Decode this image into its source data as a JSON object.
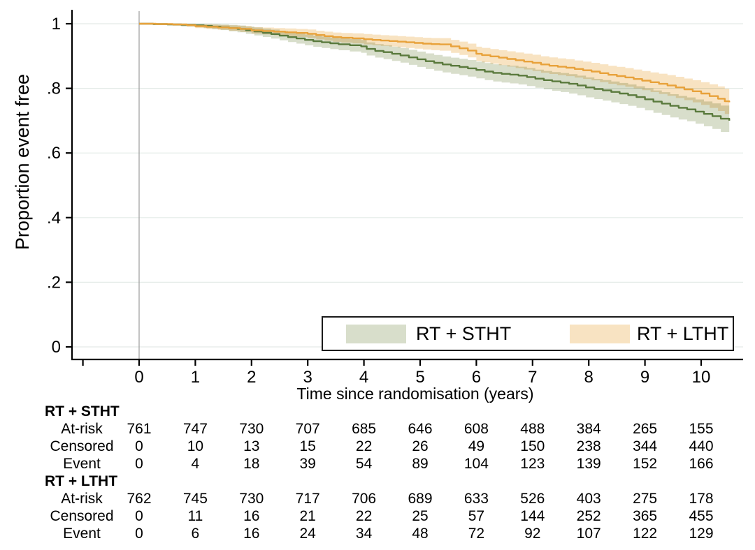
{
  "chart_data": {
    "type": "line",
    "subtype": "kaplan-meier-step",
    "title": "",
    "xlabel": "Time since randomisation (years)",
    "ylabel": "Proportion event free",
    "xlim": [
      -1.2,
      10.75
    ],
    "ylim": [
      0,
      1.04
    ],
    "grid": true,
    "grid_color": "#e4ebe7",
    "zero_line_color": "#9b9b9b",
    "axis_color": "#000000",
    "x_ticks": {
      "values": [
        -1,
        0,
        1,
        2,
        3,
        4,
        5,
        6,
        7,
        8,
        9,
        10
      ],
      "labels": [
        "",
        "0",
        "1",
        "2",
        "3",
        "4",
        "5",
        "6",
        "7",
        "8",
        "9",
        "10"
      ]
    },
    "y_ticks": {
      "values": [
        0,
        0.2,
        0.4,
        0.6,
        0.8,
        1
      ],
      "labels": [
        "0",
        ".2",
        ".4",
        ".6",
        ".8",
        "1"
      ]
    },
    "legend_position": "bottom-right-inside",
    "series": [
      {
        "name": "RT + STHT",
        "line_color": "#5a7a3d",
        "band_color": "#d8decb",
        "points": [
          [
            0,
            1.0
          ],
          [
            0.25,
            0.999
          ],
          [
            0.5,
            0.998
          ],
          [
            0.75,
            0.9966
          ],
          [
            1.0,
            0.995
          ],
          [
            1.15,
            0.993
          ],
          [
            1.3,
            0.991
          ],
          [
            1.45,
            0.989
          ],
          [
            1.6,
            0.9865
          ],
          [
            1.75,
            0.984
          ],
          [
            1.9,
            0.98
          ],
          [
            2.05,
            0.976
          ],
          [
            2.2,
            0.972
          ],
          [
            2.35,
            0.968
          ],
          [
            2.5,
            0.963
          ],
          [
            2.65,
            0.9585
          ],
          [
            2.8,
            0.9545
          ],
          [
            2.95,
            0.95
          ],
          [
            3.1,
            0.946
          ],
          [
            3.25,
            0.9425
          ],
          [
            3.4,
            0.9395
          ],
          [
            3.55,
            0.9365
          ],
          [
            3.75,
            0.9335
          ],
          [
            3.95,
            0.93
          ],
          [
            4.05,
            0.922
          ],
          [
            4.2,
            0.916
          ],
          [
            4.35,
            0.912
          ],
          [
            4.5,
            0.907
          ],
          [
            4.65,
            0.902
          ],
          [
            4.8,
            0.896
          ],
          [
            4.95,
            0.89
          ],
          [
            5.1,
            0.884
          ],
          [
            5.25,
            0.879
          ],
          [
            5.4,
            0.874
          ],
          [
            5.55,
            0.87
          ],
          [
            5.7,
            0.866
          ],
          [
            5.85,
            0.862
          ],
          [
            6.0,
            0.857
          ],
          [
            6.15,
            0.852
          ],
          [
            6.3,
            0.848
          ],
          [
            6.45,
            0.845
          ],
          [
            6.6,
            0.8425
          ],
          [
            6.75,
            0.8395
          ],
          [
            6.9,
            0.835
          ],
          [
            7.05,
            0.83
          ],
          [
            7.2,
            0.8255
          ],
          [
            7.35,
            0.8215
          ],
          [
            7.5,
            0.818
          ],
          [
            7.65,
            0.814
          ],
          [
            7.8,
            0.809
          ],
          [
            7.95,
            0.803
          ],
          [
            8.1,
            0.798
          ],
          [
            8.25,
            0.794
          ],
          [
            8.4,
            0.789
          ],
          [
            8.55,
            0.784
          ],
          [
            8.7,
            0.779
          ],
          [
            8.85,
            0.773
          ],
          [
            9.0,
            0.766
          ],
          [
            9.15,
            0.759
          ],
          [
            9.3,
            0.753
          ],
          [
            9.45,
            0.746
          ],
          [
            9.6,
            0.74
          ],
          [
            9.75,
            0.735
          ],
          [
            9.9,
            0.728
          ],
          [
            10.05,
            0.721
          ],
          [
            10.2,
            0.714
          ],
          [
            10.35,
            0.706
          ],
          [
            10.5,
            0.7
          ]
        ],
        "ci_halfwidth": [
          [
            0,
            0.002
          ],
          [
            0.5,
            0.004
          ],
          [
            1,
            0.006
          ],
          [
            2,
            0.012
          ],
          [
            3,
            0.017
          ],
          [
            4,
            0.02
          ],
          [
            5,
            0.024
          ],
          [
            6,
            0.026
          ],
          [
            7,
            0.028
          ],
          [
            8,
            0.031
          ],
          [
            9,
            0.034
          ],
          [
            10,
            0.038
          ],
          [
            10.5,
            0.042
          ]
        ]
      },
      {
        "name": "RT + LTHT",
        "line_color": "#e8a23b",
        "band_color": "#f8e3c2",
        "points": [
          [
            0,
            1.0
          ],
          [
            0.3,
            0.999
          ],
          [
            0.6,
            0.9978
          ],
          [
            0.85,
            0.996
          ],
          [
            1.0,
            0.9925
          ],
          [
            1.2,
            0.9905
          ],
          [
            1.4,
            0.9885
          ],
          [
            1.6,
            0.9865
          ],
          [
            1.8,
            0.984
          ],
          [
            2.0,
            0.9795
          ],
          [
            2.2,
            0.9775
          ],
          [
            2.4,
            0.9755
          ],
          [
            2.6,
            0.9735
          ],
          [
            2.8,
            0.9715
          ],
          [
            3.0,
            0.969
          ],
          [
            3.15,
            0.965
          ],
          [
            3.3,
            0.9615
          ],
          [
            3.45,
            0.9585
          ],
          [
            3.6,
            0.9565
          ],
          [
            3.8,
            0.9548
          ],
          [
            4.0,
            0.952
          ],
          [
            4.15,
            0.95
          ],
          [
            4.3,
            0.948
          ],
          [
            4.45,
            0.9465
          ],
          [
            4.6,
            0.9445
          ],
          [
            4.75,
            0.9425
          ],
          [
            4.9,
            0.9405
          ],
          [
            5.05,
            0.9385
          ],
          [
            5.2,
            0.937
          ],
          [
            5.35,
            0.936
          ],
          [
            5.55,
            0.93
          ],
          [
            5.7,
            0.924
          ],
          [
            5.85,
            0.917
          ],
          [
            6.0,
            0.907
          ],
          [
            6.1,
            0.903
          ],
          [
            6.25,
            0.899
          ],
          [
            6.4,
            0.895
          ],
          [
            6.55,
            0.891
          ],
          [
            6.7,
            0.887
          ],
          [
            6.85,
            0.883
          ],
          [
            7.0,
            0.879
          ],
          [
            7.15,
            0.874
          ],
          [
            7.3,
            0.87
          ],
          [
            7.45,
            0.867
          ],
          [
            7.6,
            0.864
          ],
          [
            7.75,
            0.86
          ],
          [
            7.9,
            0.856
          ],
          [
            8.05,
            0.852
          ],
          [
            8.2,
            0.847
          ],
          [
            8.35,
            0.842
          ],
          [
            8.5,
            0.838
          ],
          [
            8.65,
            0.834
          ],
          [
            8.8,
            0.829
          ],
          [
            8.95,
            0.824
          ],
          [
            9.1,
            0.819
          ],
          [
            9.25,
            0.814
          ],
          [
            9.4,
            0.809
          ],
          [
            9.55,
            0.803
          ],
          [
            9.7,
            0.797
          ],
          [
            9.85,
            0.791
          ],
          [
            10.0,
            0.784
          ],
          [
            10.15,
            0.776
          ],
          [
            10.3,
            0.768
          ],
          [
            10.42,
            0.76
          ],
          [
            10.5,
            0.757
          ]
        ],
        "ci_halfwidth": [
          [
            0,
            0.002
          ],
          [
            0.5,
            0.003
          ],
          [
            1,
            0.006
          ],
          [
            2,
            0.01
          ],
          [
            3,
            0.013
          ],
          [
            4,
            0.016
          ],
          [
            5,
            0.018
          ],
          [
            6,
            0.022
          ],
          [
            7,
            0.025
          ],
          [
            8,
            0.027
          ],
          [
            9,
            0.03
          ],
          [
            10,
            0.035
          ],
          [
            10.5,
            0.04
          ]
        ]
      }
    ]
  },
  "legend": {
    "entries": [
      {
        "label": "RT + STHT",
        "color": "#d8decb"
      },
      {
        "label": "RT + LTHT",
        "color": "#f8e3c2"
      }
    ]
  },
  "risk_table": {
    "time_points": [
      0,
      1,
      2,
      3,
      4,
      5,
      6,
      7,
      8,
      9,
      10
    ],
    "groups": [
      {
        "name": "RT + STHT",
        "rows": [
          {
            "label": "At-risk",
            "values": [
              761,
              747,
              730,
              707,
              685,
              646,
              608,
              488,
              384,
              265,
              155
            ]
          },
          {
            "label": "Censored",
            "values": [
              0,
              10,
              13,
              15,
              22,
              26,
              49,
              150,
              238,
              344,
              440
            ]
          },
          {
            "label": "Event",
            "values": [
              0,
              4,
              18,
              39,
              54,
              89,
              104,
              123,
              139,
              152,
              166
            ]
          }
        ]
      },
      {
        "name": "RT + LTHT",
        "rows": [
          {
            "label": "At-risk",
            "values": [
              762,
              745,
              730,
              717,
              706,
              689,
              633,
              526,
              403,
              275,
              178
            ]
          },
          {
            "label": "Censored",
            "values": [
              0,
              11,
              16,
              21,
              22,
              25,
              57,
              144,
              252,
              365,
              455
            ]
          },
          {
            "label": "Event",
            "values": [
              0,
              6,
              16,
              24,
              34,
              48,
              72,
              92,
              107,
              122,
              129
            ]
          }
        ]
      }
    ]
  }
}
